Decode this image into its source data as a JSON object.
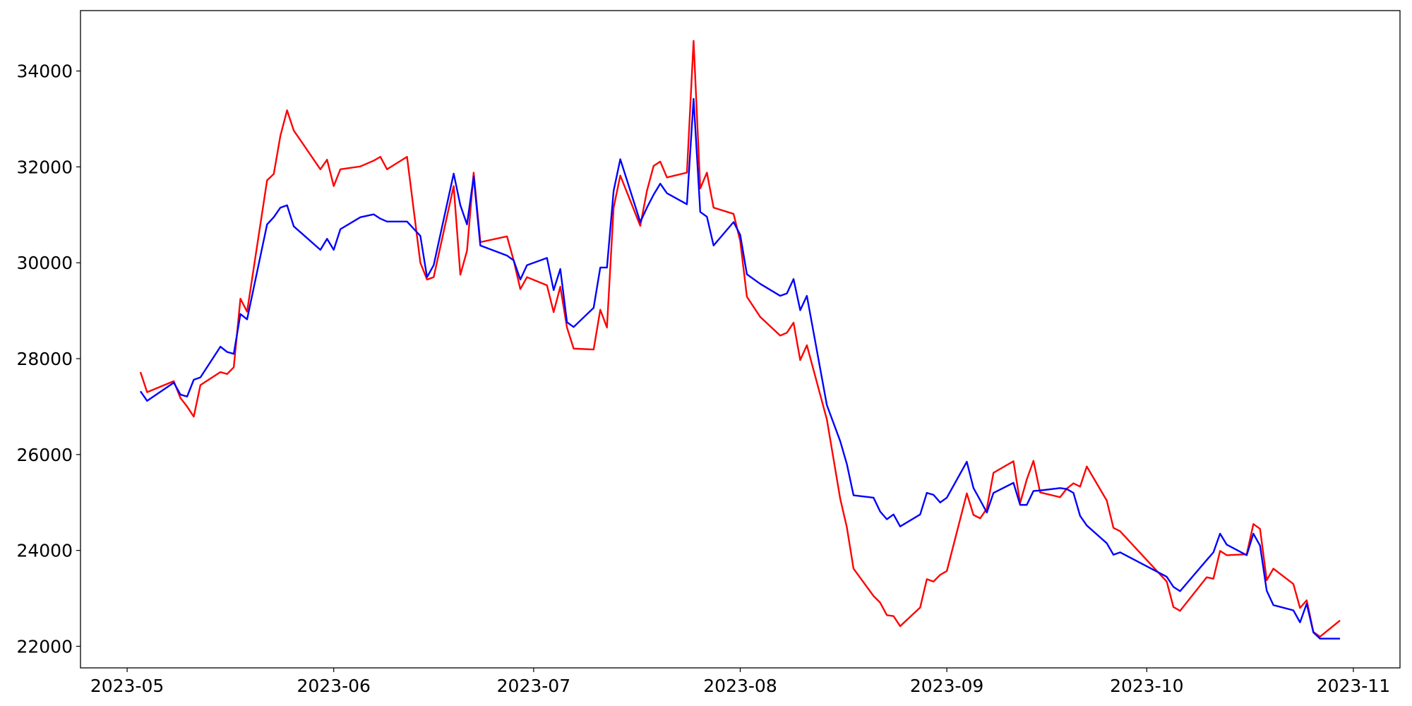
{
  "chart_data": {
    "type": "line",
    "x": [
      "2023-05-03",
      "2023-05-04",
      "2023-05-08",
      "2023-05-09",
      "2023-05-10",
      "2023-05-11",
      "2023-05-12",
      "2023-05-15",
      "2023-05-16",
      "2023-05-17",
      "2023-05-18",
      "2023-05-19",
      "2023-05-22",
      "2023-05-23",
      "2023-05-24",
      "2023-05-25",
      "2023-05-26",
      "2023-05-30",
      "2023-05-31",
      "2023-06-01",
      "2023-06-02",
      "2023-06-05",
      "2023-06-07",
      "2023-06-08",
      "2023-06-09",
      "2023-06-12",
      "2023-06-14",
      "2023-06-15",
      "2023-06-16",
      "2023-06-19",
      "2023-06-20",
      "2023-06-21",
      "2023-06-22",
      "2023-06-23",
      "2023-06-27",
      "2023-06-28",
      "2023-06-29",
      "2023-06-30",
      "2023-07-03",
      "2023-07-04",
      "2023-07-05",
      "2023-07-06",
      "2023-07-07",
      "2023-07-10",
      "2023-07-11",
      "2023-07-12",
      "2023-07-13",
      "2023-07-14",
      "2023-07-17",
      "2023-07-18",
      "2023-07-19",
      "2023-07-20",
      "2023-07-21",
      "2023-07-24",
      "2023-07-25",
      "2023-07-26",
      "2023-07-27",
      "2023-07-28",
      "2023-07-31",
      "2023-08-01",
      "2023-08-02",
      "2023-08-04",
      "2023-08-07",
      "2023-08-08",
      "2023-08-09",
      "2023-08-10",
      "2023-08-11",
      "2023-08-14",
      "2023-08-16",
      "2023-08-17",
      "2023-08-18",
      "2023-08-21",
      "2023-08-22",
      "2023-08-23",
      "2023-08-24",
      "2023-08-25",
      "2023-08-28",
      "2023-08-29",
      "2023-08-30",
      "2023-08-31",
      "2023-09-01",
      "2023-09-04",
      "2023-09-05",
      "2023-09-06",
      "2023-09-07",
      "2023-09-08",
      "2023-09-11",
      "2023-09-12",
      "2023-09-13",
      "2023-09-14",
      "2023-09-15",
      "2023-09-18",
      "2023-09-19",
      "2023-09-20",
      "2023-09-21",
      "2023-09-22",
      "2023-09-25",
      "2023-09-26",
      "2023-09-27",
      "2023-10-04",
      "2023-10-05",
      "2023-10-06",
      "2023-10-10",
      "2023-10-11",
      "2023-10-12",
      "2023-10-13",
      "2023-10-16",
      "2023-10-17",
      "2023-10-18",
      "2023-10-19",
      "2023-10-20",
      "2023-10-23",
      "2023-10-24",
      "2023-10-25",
      "2023-10-26",
      "2023-10-27",
      "2023-10-30"
    ],
    "series": [
      {
        "color": "#ff0000",
        "values": [
          27720,
          27300,
          27530,
          27180,
          27000,
          26790,
          27450,
          27720,
          27680,
          27820,
          29250,
          28980,
          31720,
          31850,
          32650,
          33180,
          32760,
          31950,
          32150,
          31600,
          31950,
          32010,
          32130,
          32210,
          31950,
          32210,
          30000,
          29650,
          29700,
          31600,
          29750,
          30250,
          31880,
          30430,
          30550,
          30050,
          29450,
          29700,
          29530,
          28970,
          29500,
          28650,
          28210,
          28190,
          29020,
          28650,
          31150,
          31820,
          30770,
          31500,
          32020,
          32110,
          31780,
          31880,
          34630,
          31550,
          31880,
          31150,
          31020,
          30450,
          29290,
          28870,
          28480,
          28540,
          28750,
          27970,
          28280,
          26730,
          25080,
          24480,
          23620,
          23050,
          22910,
          22650,
          22630,
          22420,
          22810,
          23400,
          23350,
          23490,
          23570,
          25190,
          24740,
          24670,
          24870,
          25620,
          25860,
          24990,
          25480,
          25870,
          25210,
          25110,
          25290,
          25400,
          25330,
          25750,
          25040,
          24470,
          24400,
          23350,
          22820,
          22740,
          23440,
          23410,
          23990,
          23900,
          23920,
          24550,
          24450,
          23380,
          23620,
          23300,
          22800,
          22960,
          22300,
          22200,
          22540
        ]
      },
      {
        "color": "#0000ff",
        "values": [
          27320,
          27120,
          27500,
          27250,
          27210,
          27560,
          27610,
          28250,
          28140,
          28100,
          28930,
          28820,
          30800,
          30950,
          31150,
          31200,
          30760,
          30270,
          30500,
          30270,
          30700,
          30950,
          31010,
          30920,
          30860,
          30860,
          30560,
          29700,
          29950,
          31860,
          31200,
          30800,
          31800,
          30360,
          30150,
          30050,
          29650,
          29950,
          30100,
          29430,
          29870,
          28760,
          28660,
          29060,
          29900,
          29900,
          31500,
          32160,
          30850,
          31150,
          31420,
          31650,
          31450,
          31220,
          33420,
          31060,
          30960,
          30360,
          30850,
          30580,
          29760,
          29560,
          29310,
          29360,
          29660,
          29010,
          29310,
          27030,
          26280,
          25800,
          25150,
          25100,
          24810,
          24650,
          24750,
          24500,
          24750,
          25200,
          25160,
          25000,
          25100,
          25850,
          25300,
          25050,
          24790,
          25200,
          25410,
          24950,
          24950,
          25240,
          25250,
          25300,
          25280,
          25200,
          24720,
          24520,
          24150,
          23910,
          23960,
          23450,
          23240,
          23150,
          23800,
          23960,
          24350,
          24120,
          23900,
          24350,
          24100,
          23160,
          22860,
          22750,
          22500,
          22890,
          22290,
          22160,
          22160
        ]
      }
    ],
    "xlim": [
      "2023-04-24",
      "2023-11-08"
    ],
    "xticks": [
      {
        "value": "2023-05-01",
        "label": "2023-05"
      },
      {
        "value": "2023-06-01",
        "label": "2023-06"
      },
      {
        "value": "2023-07-01",
        "label": "2023-07"
      },
      {
        "value": "2023-08-01",
        "label": "2023-08"
      },
      {
        "value": "2023-09-01",
        "label": "2023-09"
      },
      {
        "value": "2023-10-01",
        "label": "2023-10"
      },
      {
        "value": "2023-11-01",
        "label": "2023-11"
      }
    ],
    "ylim": [
      21550,
      35260
    ],
    "yticks": [
      22000,
      24000,
      26000,
      28000,
      30000,
      32000,
      34000
    ],
    "grid": false
  }
}
